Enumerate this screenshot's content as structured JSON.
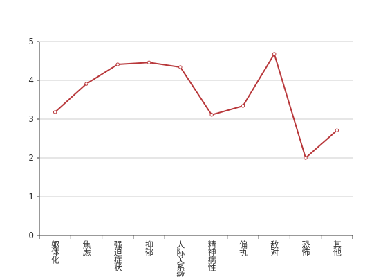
{
  "chart_data": {
    "type": "line",
    "categories": [
      "躯体化",
      "焦虑",
      "强迫症状",
      "抑郁",
      "人际关系敏感",
      "精神病性",
      "偏执",
      "敌对",
      "恐怖",
      "其他"
    ],
    "series": [
      {
        "color": "#b8373a",
        "values": [
          3.18,
          3.91,
          4.41,
          4.46,
          4.34,
          3.11,
          3.34,
          4.68,
          2.0,
          2.71
        ]
      }
    ],
    "ylim": [
      0,
      5
    ],
    "yticks": [
      0,
      1,
      2,
      3,
      4,
      5
    ],
    "grid": true
  }
}
